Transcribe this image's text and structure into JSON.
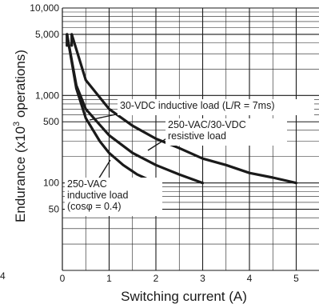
{
  "chart_data": {
    "type": "line",
    "title": "",
    "xlabel": "Switching current (A)",
    "ylabel_prefix": "Endurance (x10",
    "ylabel_exp": "3",
    "ylabel_suffix": " operations)",
    "y_scale": "log",
    "xlim": [
      0,
      6
    ],
    "ylim": [
      10,
      10000
    ],
    "grid": true,
    "x_ticks": [
      "0",
      "1",
      "2",
      "3",
      "4",
      "5"
    ],
    "y_ticks": [
      {
        "value": 10000,
        "label": "10,000"
      },
      {
        "value": 5000,
        "label": "5,000"
      },
      {
        "value": 1000,
        "label": "1,000"
      },
      {
        "value": 500,
        "label": "500"
      },
      {
        "value": 100,
        "label": "100"
      },
      {
        "value": 50,
        "label": "50"
      }
    ],
    "edge_fragment": "4",
    "series": [
      {
        "name": "30-VDC inductive load (L/R = 7ms)",
        "x": [
          0.1,
          0.3,
          0.5,
          0.8,
          1.0,
          1.3,
          1.6,
          2.0
        ],
        "y": [
          5000,
          1200,
          550,
          300,
          220,
          160,
          125,
          100
        ]
      },
      {
        "name": "250-VAC/30-VDC resistive load",
        "x": [
          0.2,
          0.5,
          1.0,
          1.5,
          2.0,
          2.5,
          3.0,
          3.5,
          4.0,
          4.5,
          5.0
        ],
        "y": [
          5000,
          1500,
          700,
          450,
          320,
          250,
          190,
          160,
          130,
          115,
          100
        ]
      },
      {
        "name": "250-VAC inductive load (cosφ = 0.4)",
        "x": [
          0.1,
          0.3,
          0.5,
          1.0,
          1.5,
          2.0,
          2.5,
          3.0
        ],
        "y": [
          5000,
          1300,
          700,
          350,
          220,
          160,
          125,
          100
        ]
      }
    ],
    "annotations": [
      {
        "lines": [
          "30-VDC inductive load (L/R = 7ms)"
        ]
      },
      {
        "lines": [
          "250-VAC/30-VDC",
          "resistive load"
        ]
      },
      {
        "lines": [
          "250-VAC",
          "inductive load",
          "(cosφ = 0.4)"
        ]
      }
    ]
  }
}
